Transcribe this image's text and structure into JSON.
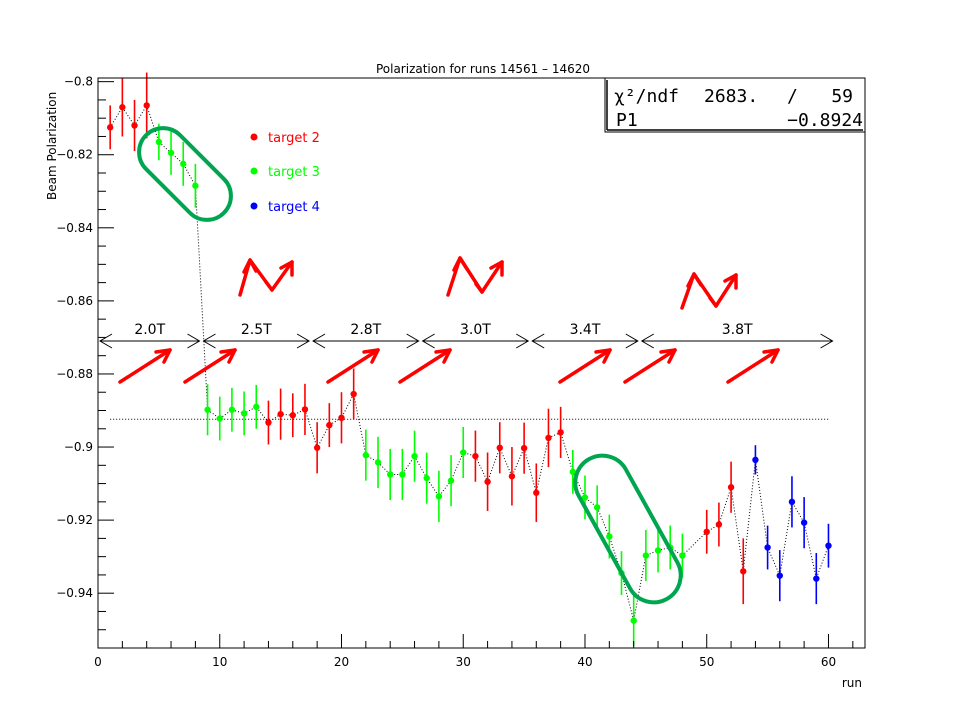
{
  "chart_data": {
    "type": "scatter",
    "title": "Polarization for runs 14561 – 14620",
    "xlabel": "run",
    "ylabel": "Beam Polarization",
    "xlim": [
      0,
      63
    ],
    "ylim": [
      -0.955,
      -0.799
    ],
    "x_ticks": [
      0,
      10,
      20,
      30,
      40,
      50,
      60
    ],
    "y_ticks": [
      -0.94,
      -0.92,
      -0.9,
      -0.88,
      -0.86,
      -0.84,
      -0.82,
      -0.8
    ],
    "y_tick_labels": [
      "−0.94",
      "−0.92",
      "−0.9",
      "−0.88",
      "−0.86",
      "−0.84",
      "−0.82",
      "−0.8"
    ],
    "fit_line": -0.8924,
    "stats": {
      "chi2_label": "χ²/ndf",
      "chi2_value": "2683.",
      "slash": "/",
      "ndf": "59",
      "p1_label": "P1",
      "p1_value": "−0.8924"
    },
    "legend": [
      {
        "name": "target 2",
        "color": "#ff0000"
      },
      {
        "name": "target 3",
        "color": "#00ff00"
      },
      {
        "name": "target 4",
        "color": "#0000ff"
      }
    ],
    "series": [
      {
        "name": "target 2",
        "color": "#ff0000",
        "points": [
          {
            "x": 1,
            "y": -0.8125,
            "err": 0.006
          },
          {
            "x": 2,
            "y": -0.807,
            "err": 0.008
          },
          {
            "x": 3,
            "y": -0.812,
            "err": 0.007
          },
          {
            "x": 4,
            "y": -0.8065,
            "err": 0.009
          },
          {
            "x": 14,
            "y": -0.8933,
            "err": 0.006
          },
          {
            "x": 15,
            "y": -0.891,
            "err": 0.007
          },
          {
            "x": 16,
            "y": -0.8913,
            "err": 0.006
          },
          {
            "x": 17,
            "y": -0.8897,
            "err": 0.007
          },
          {
            "x": 18,
            "y": -0.9002,
            "err": 0.007
          },
          {
            "x": 19,
            "y": -0.894,
            "err": 0.006
          },
          {
            "x": 20,
            "y": -0.892,
            "err": 0.007
          },
          {
            "x": 21,
            "y": -0.8855,
            "err": 0.007
          },
          {
            "x": 31,
            "y": -0.9025,
            "err": 0.007
          },
          {
            "x": 32,
            "y": -0.9095,
            "err": 0.008
          },
          {
            "x": 33,
            "y": -0.9002,
            "err": 0.007
          },
          {
            "x": 34,
            "y": -0.908,
            "err": 0.008
          },
          {
            "x": 35,
            "y": -0.9003,
            "err": 0.007
          },
          {
            "x": 36,
            "y": -0.9125,
            "err": 0.008
          },
          {
            "x": 37,
            "y": -0.8975,
            "err": 0.008
          },
          {
            "x": 38,
            "y": -0.896,
            "err": 0.007
          },
          {
            "x": 50,
            "y": -0.9232,
            "err": 0.006
          },
          {
            "x": 51,
            "y": -0.9212,
            "err": 0.006
          },
          {
            "x": 52,
            "y": -0.911,
            "err": 0.007
          },
          {
            "x": 53,
            "y": -0.934,
            "err": 0.009
          }
        ]
      },
      {
        "name": "target 3",
        "color": "#00ff00",
        "points": [
          {
            "x": 5,
            "y": -0.8165,
            "err": 0.005
          },
          {
            "x": 6,
            "y": -0.8195,
            "err": 0.006
          },
          {
            "x": 7,
            "y": -0.8225,
            "err": 0.006
          },
          {
            "x": 8,
            "y": -0.8285,
            "err": 0.006
          },
          {
            "x": 9,
            "y": -0.8898,
            "err": 0.007
          },
          {
            "x": 10,
            "y": -0.8922,
            "err": 0.006
          },
          {
            "x": 11,
            "y": -0.8898,
            "err": 0.006
          },
          {
            "x": 12,
            "y": -0.8908,
            "err": 0.006
          },
          {
            "x": 13,
            "y": -0.889,
            "err": 0.006
          },
          {
            "x": 22,
            "y": -0.9022,
            "err": 0.007
          },
          {
            "x": 23,
            "y": -0.9042,
            "err": 0.007
          },
          {
            "x": 24,
            "y": -0.9075,
            "err": 0.007
          },
          {
            "x": 25,
            "y": -0.9075,
            "err": 0.007
          },
          {
            "x": 26,
            "y": -0.9025,
            "err": 0.007
          },
          {
            "x": 27,
            "y": -0.9085,
            "err": 0.007
          },
          {
            "x": 28,
            "y": -0.9135,
            "err": 0.007
          },
          {
            "x": 29,
            "y": -0.9092,
            "err": 0.007
          },
          {
            "x": 30,
            "y": -0.9015,
            "err": 0.007
          },
          {
            "x": 39,
            "y": -0.9068,
            "err": 0.006
          },
          {
            "x": 40,
            "y": -0.9138,
            "err": 0.006
          },
          {
            "x": 41,
            "y": -0.9165,
            "err": 0.006
          },
          {
            "x": 42,
            "y": -0.9245,
            "err": 0.006
          },
          {
            "x": 43,
            "y": -0.9345,
            "err": 0.006
          },
          {
            "x": 44,
            "y": -0.9475,
            "err": 0.007
          },
          {
            "x": 45,
            "y": -0.9297,
            "err": 0.007
          },
          {
            "x": 46,
            "y": -0.9283,
            "err": 0.006
          },
          {
            "x": 47,
            "y": -0.9275,
            "err": 0.006
          },
          {
            "x": 48,
            "y": -0.9297,
            "err": 0.006
          }
        ]
      },
      {
        "name": "target 4",
        "color": "#0000ff",
        "points": [
          {
            "x": 54,
            "y": -0.9035,
            "err": 0.004
          },
          {
            "x": 55,
            "y": -0.9275,
            "err": 0.006
          },
          {
            "x": 56,
            "y": -0.9352,
            "err": 0.007
          },
          {
            "x": 57,
            "y": -0.915,
            "err": 0.007
          },
          {
            "x": 58,
            "y": -0.9207,
            "err": 0.007
          },
          {
            "x": 59,
            "y": -0.936,
            "err": 0.007
          },
          {
            "x": 60,
            "y": -0.927,
            "err": 0.006
          }
        ]
      }
    ],
    "field_regions": [
      {
        "label": "2.0T",
        "x_start": 0,
        "x_end": 8.5
      },
      {
        "label": "2.5T",
        "x_start": 8.5,
        "x_end": 17.5
      },
      {
        "label": "2.8T",
        "x_start": 17.5,
        "x_end": 26.5
      },
      {
        "label": "3.0T",
        "x_start": 26.5,
        "x_end": 35.5
      },
      {
        "label": "3.4T",
        "x_start": 35.5,
        "x_end": 44.5
      },
      {
        "label": "3.8T",
        "x_start": 44.5,
        "x_end": 60.5
      }
    ],
    "annotation_colors": {
      "arrows": "#ff0000",
      "highlight": "#00a550"
    }
  }
}
